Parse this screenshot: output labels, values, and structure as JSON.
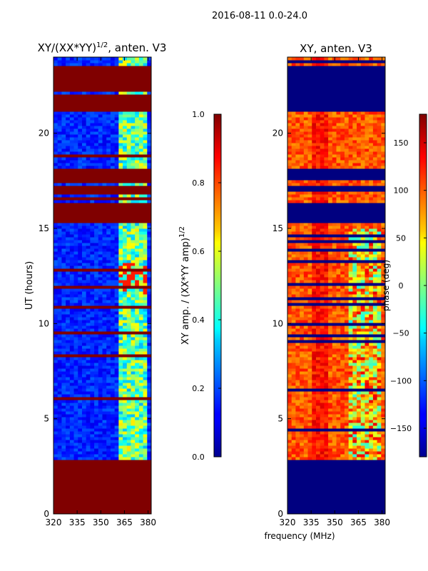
{
  "header": {
    "date_range": "2016-08-11 0.0-24.0"
  },
  "chart_data": [
    {
      "type": "heatmap",
      "title": "XY/(XX*YY)",
      "title_superscript": "1/2",
      "title_suffix": ", anten. V3",
      "xlabel": "",
      "ylabel": "UT (hours)",
      "xlim": [
        320,
        382
      ],
      "ylim": [
        0,
        24
      ],
      "xticks": [
        320,
        335,
        350,
        365,
        380
      ],
      "yticks": [
        0,
        5,
        10,
        15,
        20
      ],
      "colorbar": {
        "label": "XY amp. / (XX*YY amp)",
        "label_superscript": "1/2",
        "range": [
          0.0,
          1.0
        ],
        "ticks": [
          "0.0",
          "0.2",
          "0.4",
          "0.6",
          "0.8",
          "1.0"
        ],
        "colormap": "jet"
      },
      "flagged_ut_ranges": [
        [
          0,
          2.8
        ],
        [
          15.3,
          16.3
        ],
        [
          16.9,
          17.3
        ],
        [
          17.6,
          18.2
        ],
        [
          21.1,
          22.0
        ],
        [
          22.2,
          23.5
        ]
      ],
      "flagged_value": 1.0,
      "typical_value_low_band": 0.15,
      "typical_value_high_band": 0.45
    },
    {
      "type": "heatmap",
      "title": "XY, anten. V3",
      "xlabel": "frequency (MHz)",
      "ylabel": "",
      "xlim": [
        320,
        382
      ],
      "ylim": [
        0,
        24
      ],
      "xticks": [
        320,
        335,
        350,
        365,
        380
      ],
      "yticks": [
        0,
        5,
        10,
        15,
        20
      ],
      "colorbar": {
        "label": "phase (deg)",
        "range": [
          -180,
          180
        ],
        "ticks": [
          "−150",
          "−100",
          "−50",
          "0",
          "50",
          "100",
          "150"
        ],
        "colormap": "jet"
      },
      "flagged_ut_ranges": [
        [
          0,
          2.8
        ],
        [
          15.3,
          16.3
        ],
        [
          16.9,
          17.3
        ],
        [
          17.6,
          18.2
        ],
        [
          21.1,
          22.0
        ],
        [
          22.2,
          23.5
        ]
      ],
      "flagged_value": -180,
      "typical_value_deg": 120
    }
  ]
}
